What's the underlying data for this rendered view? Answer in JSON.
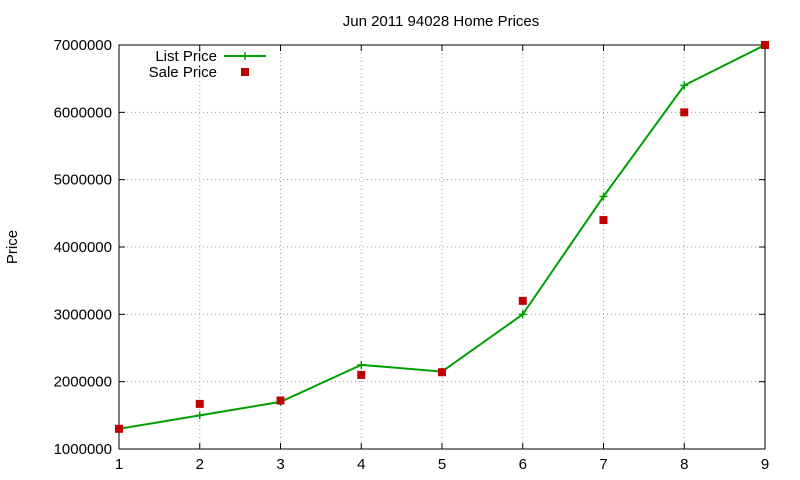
{
  "chart_data": {
    "type": "line",
    "title": "Jun 2011 94028 Home Prices",
    "xlabel": "",
    "ylabel": "Price",
    "x": [
      1,
      2,
      3,
      4,
      5,
      6,
      7,
      8,
      9
    ],
    "xlim": [
      1,
      9
    ],
    "ylim": [
      1000000,
      7000000
    ],
    "x_ticks": [
      "1",
      "2",
      "3",
      "4",
      "5",
      "6",
      "7",
      "8",
      "9"
    ],
    "y_ticks": [
      "1000000",
      "2000000",
      "3000000",
      "4000000",
      "5000000",
      "6000000",
      "7000000"
    ],
    "grid": true,
    "legend_position": "top-left",
    "series": [
      {
        "name": "List Price",
        "style": "line+cross",
        "color": "#00a000",
        "values": [
          1300000,
          1500000,
          1700000,
          2250000,
          2150000,
          3000000,
          4750000,
          6400000,
          7000000
        ]
      },
      {
        "name": "Sale Price",
        "style": "square",
        "color": "#c00000",
        "values": [
          1300000,
          1670000,
          1720000,
          2100000,
          2140000,
          3200000,
          4400000,
          6000000,
          7000000
        ]
      }
    ]
  }
}
